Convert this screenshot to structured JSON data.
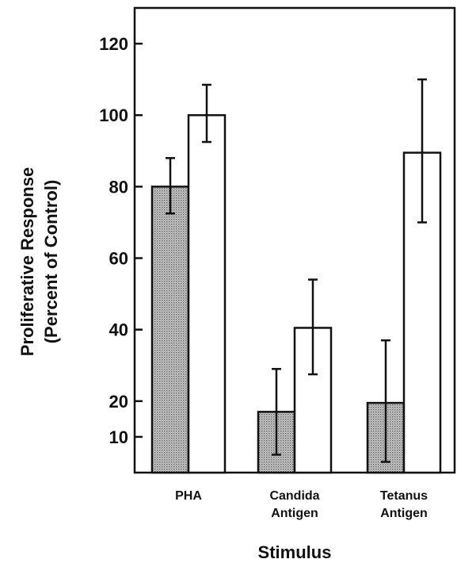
{
  "chart_data": {
    "type": "bar",
    "title": "",
    "xlabel": "Stimulus",
    "ylabel_lines": [
      "Proliferative Response",
      "(Percent of Control)"
    ],
    "ylim": [
      0,
      130
    ],
    "yticks": [
      10,
      20,
      40,
      60,
      80,
      100,
      120
    ],
    "categories": [
      {
        "lines": [
          "PHA"
        ]
      },
      {
        "lines": [
          "Candida",
          "Antigen"
        ]
      },
      {
        "lines": [
          "Tetanus",
          "Antigen"
        ]
      }
    ],
    "series": [
      {
        "fill": "stippled",
        "values": [
          80,
          17,
          19.5
        ],
        "err_low": [
          72.5,
          5,
          3
        ],
        "err_high": [
          88,
          29,
          37
        ]
      },
      {
        "fill": "#ffffff",
        "values": [
          100,
          40.5,
          89.5
        ],
        "err_low": [
          92.5,
          27.5,
          70
        ],
        "err_high": [
          108.5,
          54,
          110
        ]
      }
    ],
    "grid": false,
    "colors": {
      "stipple": "#b8b8b8",
      "ink": "#111111"
    }
  }
}
